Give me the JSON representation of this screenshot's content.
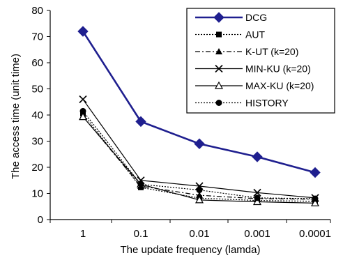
{
  "chart_data": {
    "type": "line",
    "xlabel": "The update frequency (lamda)",
    "ylabel": "The access time (unit time)",
    "categories": [
      "1",
      "0.1",
      "0.01",
      "0.001",
      "0.0001"
    ],
    "ylim": [
      0,
      80
    ],
    "yticks": [
      "0",
      "10",
      "20",
      "30",
      "40",
      "50",
      "60",
      "70",
      "80"
    ],
    "grid": false,
    "legend_position": "top-right",
    "series": [
      {
        "name": "DCG",
        "values": [
          72,
          37.5,
          29,
          24,
          18
        ],
        "marker": "diamond",
        "dash": "solid",
        "color": "#1f1f8f",
        "bold": true
      },
      {
        "name": "AUT",
        "values": [
          40.5,
          12.3,
          8.2,
          7.3,
          7.0
        ],
        "marker": "square",
        "dash": "dotted",
        "color": "#000000"
      },
      {
        "name": "K-UT (k=20)",
        "values": [
          39.5,
          12.8,
          9.3,
          8.0,
          7.8
        ],
        "marker": "triangle",
        "dash": "dashdot",
        "color": "#000000"
      },
      {
        "name": "MIN-KU (k=20)",
        "values": [
          46,
          15,
          12.8,
          10.3,
          8.3
        ],
        "marker": "x",
        "dash": "solid",
        "color": "#000000"
      },
      {
        "name": "MAX-KU (k=20)",
        "values": [
          39.3,
          13.5,
          7.5,
          6.8,
          6.3
        ],
        "marker": "triangle-open",
        "dash": "solid",
        "color": "#000000"
      },
      {
        "name": "HISTORY",
        "values": [
          41.5,
          13.5,
          11.3,
          8.3,
          8.0
        ],
        "marker": "circle",
        "dash": "dotted",
        "color": "#000000"
      }
    ]
  }
}
